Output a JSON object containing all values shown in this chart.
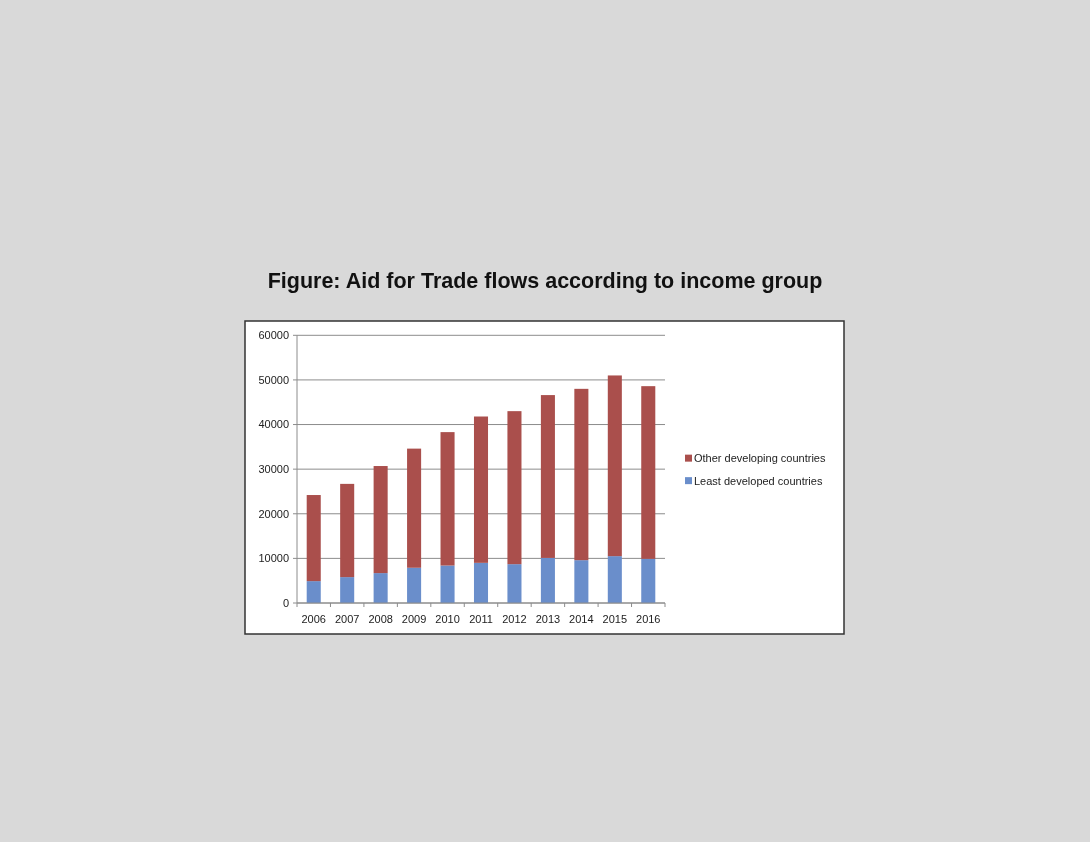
{
  "chart_data": {
    "type": "bar",
    "title": "Figure: Aid for Trade flows according to income group",
    "categories": [
      "2006",
      "2007",
      "2008",
      "2009",
      "2010",
      "2011",
      "2012",
      "2013",
      "2014",
      "2015",
      "2016"
    ],
    "series": [
      {
        "name": "Least developed countries",
        "color": "#6a8ecb",
        "values": [
          4900,
          5800,
          6700,
          7900,
          8400,
          9000,
          8700,
          10100,
          9600,
          10500,
          9900
        ]
      },
      {
        "name": "Other developing countries",
        "color": "#aa4f4c",
        "values": [
          19300,
          20900,
          24000,
          26700,
          29900,
          32800,
          34300,
          36500,
          38400,
          40500,
          38700
        ]
      }
    ],
    "stacked": true,
    "ylim": [
      0,
      60000
    ],
    "yticks": [
      0,
      10000,
      20000,
      30000,
      40000,
      50000,
      60000
    ],
    "grid": "y",
    "legend": "right"
  }
}
